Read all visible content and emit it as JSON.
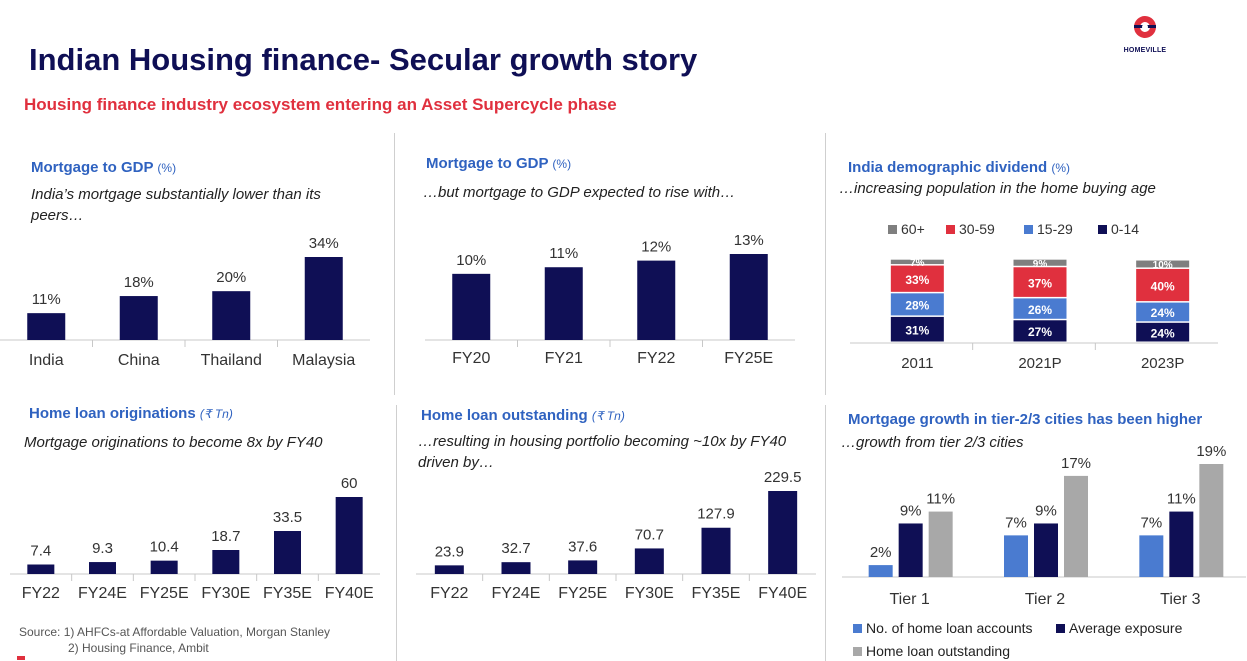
{
  "header": {
    "title": "Indian Housing finance- Secular growth story",
    "subtitle": "Housing finance industry ecosystem entering an Asset Supercycle phase",
    "logo_text": "HOMEVILLE"
  },
  "colors": {
    "navy": "#0f0f55",
    "blue_title": "#2f62c0",
    "red": "#e0303e",
    "mid_blue": "#4a7bd0",
    "grey": "#a8a8a8",
    "dark_grey": "#7f7f7f"
  },
  "panels": {
    "p1": {
      "title": "Mortgage to GDP",
      "unit": "(%)",
      "desc": "India’s mortgage substantially lower than its peers…"
    },
    "p2": {
      "title": "Mortgage to GDP",
      "unit": "(%)",
      "desc": "…but mortgage to GDP expected to rise with…"
    },
    "p3": {
      "title": "India demographic dividend",
      "unit": "(%)",
      "desc": "…increasing population in the home buying age"
    },
    "p4": {
      "title": "Home loan originations",
      "unit": "(₹ Tn)",
      "desc": "Mortgage originations to become 8x by FY40"
    },
    "p5": {
      "title": "Home loan outstanding",
      "unit": "(₹ Tn)",
      "desc": "…resulting in housing portfolio becoming ~10x by FY40 driven by…"
    },
    "p6": {
      "title": "Mortgage growth in tier-2/3 cities has been higher",
      "desc": "…growth from tier 2/3 cities"
    }
  },
  "source": {
    "line1": "Source: 1) AHFCs-at Affordable Valuation, Morgan Stanley",
    "line2": "2) Housing Finance, Ambit"
  },
  "chart_data": [
    {
      "type": "bar",
      "categories": [
        "India",
        "China",
        "Thailand",
        "Malaysia"
      ],
      "values": [
        11,
        18,
        20,
        34
      ],
      "labels": [
        "11%",
        "18%",
        "20%",
        "34%"
      ],
      "ylim": [
        0,
        34
      ]
    },
    {
      "type": "bar",
      "categories": [
        "FY20",
        "FY21",
        "FY22",
        "FY25E"
      ],
      "values": [
        10,
        11,
        12,
        13
      ],
      "labels": [
        "10%",
        "11%",
        "12%",
        "13%"
      ],
      "ylim": [
        0,
        13
      ]
    },
    {
      "type": "bar",
      "stacked": true,
      "categories": [
        "2011",
        "2021P",
        "2023P"
      ],
      "legend": [
        "60+",
        "30-59",
        "15-29",
        "0-14"
      ],
      "series": [
        {
          "name": "0-14",
          "values": [
            31,
            27,
            24
          ],
          "labels": [
            "31%",
            "27%",
            "24%"
          ],
          "color": "#0f0f55"
        },
        {
          "name": "15-29",
          "values": [
            28,
            26,
            24
          ],
          "labels": [
            "28%",
            "26%",
            "24%"
          ],
          "color": "#4a7bd0"
        },
        {
          "name": "30-59",
          "values": [
            33,
            37,
            40
          ],
          "labels": [
            "33%",
            "37%",
            "40%"
          ],
          "color": "#e0303e"
        },
        {
          "name": "60+",
          "values": [
            7,
            9,
            10
          ],
          "labels": [
            "7%",
            "9%",
            "10%"
          ],
          "color": "#7f7f7f"
        }
      ]
    },
    {
      "type": "bar",
      "categories": [
        "FY22",
        "FY24E",
        "FY25E",
        "FY30E",
        "FY35E",
        "FY40E"
      ],
      "values": [
        7.4,
        9.3,
        10.4,
        18.7,
        33.5,
        60
      ],
      "labels": [
        "7.4",
        "9.3",
        "10.4",
        "18.7",
        "33.5",
        "60"
      ],
      "ylim": [
        0,
        60
      ]
    },
    {
      "type": "bar",
      "categories": [
        "FY22",
        "FY24E",
        "FY25E",
        "FY30E",
        "FY35E",
        "FY40E"
      ],
      "values": [
        23.9,
        32.7,
        37.6,
        70.7,
        127.9,
        229.5
      ],
      "labels": [
        "23.9",
        "32.7",
        "37.6",
        "70.7",
        "127.9",
        "229.5"
      ],
      "ylim": [
        0,
        229.5
      ]
    },
    {
      "type": "bar",
      "categories": [
        "Tier 1",
        "Tier 2",
        "Tier 3"
      ],
      "series": [
        {
          "name": "No. of home loan accounts",
          "values": [
            2,
            7,
            7
          ],
          "labels": [
            "2%",
            "7%",
            "7%"
          ],
          "color": "#4a7bd0"
        },
        {
          "name": "Average exposure",
          "values": [
            9,
            9,
            11
          ],
          "labels": [
            "9%",
            "9%",
            "11%"
          ],
          "color": "#0f0f55"
        },
        {
          "name": "Home loan outstanding",
          "values": [
            11,
            17,
            19
          ],
          "labels": [
            "11%",
            "17%",
            "19%"
          ],
          "color": "#a8a8a8"
        }
      ],
      "ylim": [
        0,
        19
      ]
    }
  ]
}
